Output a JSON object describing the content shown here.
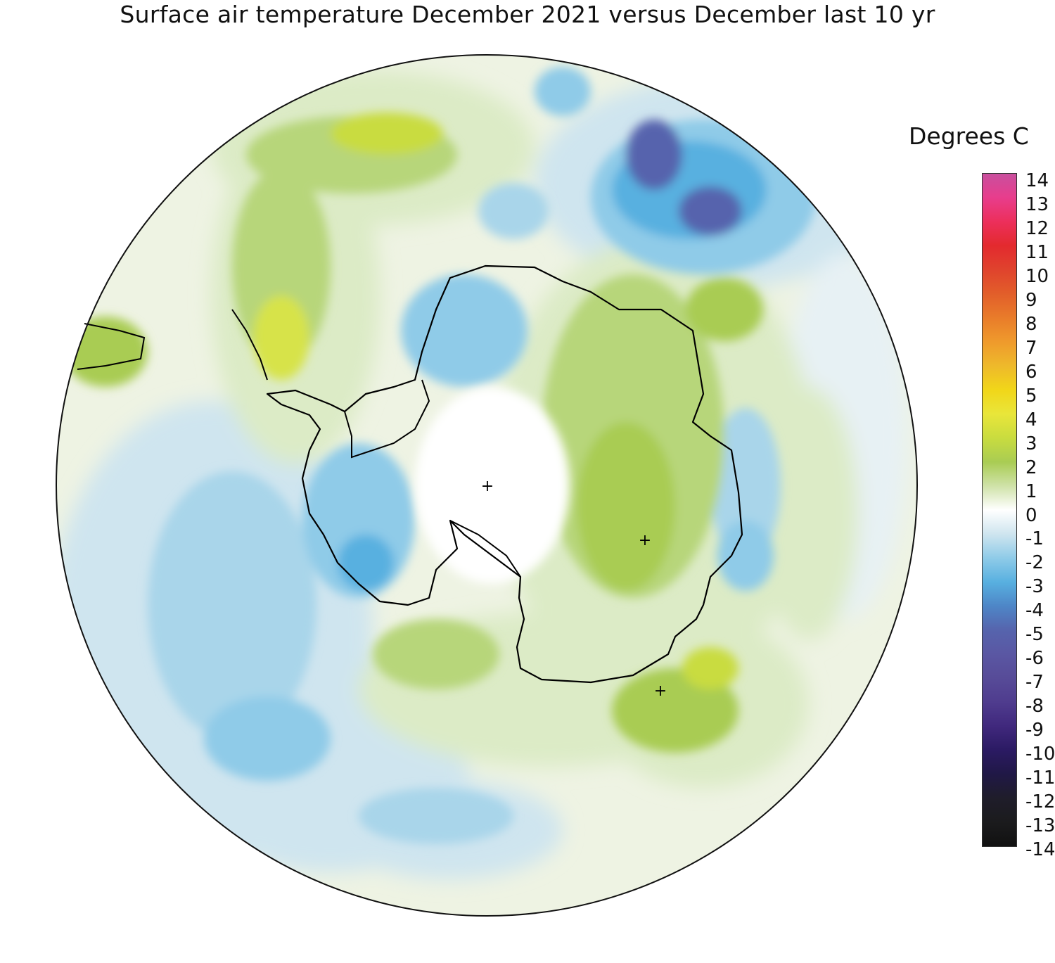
{
  "title": "Surface air temperature December 2021 versus December last 10 yr",
  "legend": {
    "title": "Degrees C",
    "ticks": [
      "14",
      "13",
      "12",
      "11",
      "10",
      "9",
      "8",
      "7",
      "6",
      "5",
      "4",
      "3",
      "2",
      "1",
      "0",
      "-1",
      "-2",
      "-3",
      "-4",
      "-5",
      "-6",
      "-7",
      "-8",
      "-9",
      "-10",
      "-11",
      "-12",
      "-13",
      "-14"
    ],
    "colors": [
      "#c94f9e",
      "#e83d8c",
      "#ec2f5b",
      "#e32a2e",
      "#e0432d",
      "#e25e2a",
      "#e97c2a",
      "#ef9a2c",
      "#eeb92b",
      "#f1d619",
      "#e9e63a",
      "#c9dc3f",
      "#a9cc53",
      "#cfe2a8",
      "#ffffff",
      "#cfe5ef",
      "#8fcbe8",
      "#58b0e0",
      "#4e86c7",
      "#5664ad",
      "#5a57a3",
      "#574b98",
      "#4f3c8e",
      "#40287d",
      "#2b1a63",
      "#201846",
      "#1f1d2a",
      "#1b1b1d",
      "#111111"
    ]
  },
  "markers": [
    "+",
    "+",
    "+"
  ]
}
